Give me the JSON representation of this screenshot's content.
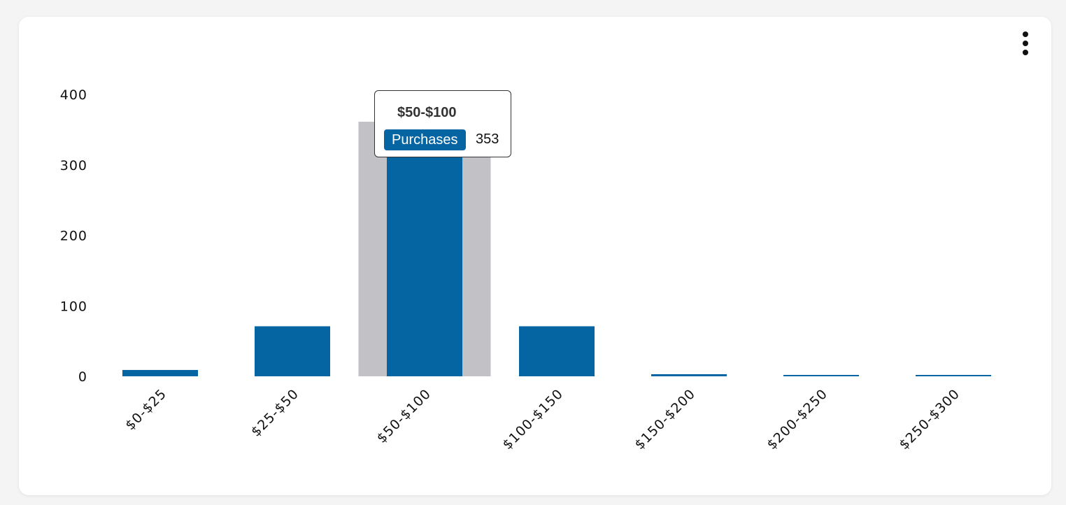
{
  "chart_data": {
    "type": "bar",
    "categories": [
      "$0-$25",
      "$25-$50",
      "$50-$100",
      "$100-$150",
      "$150-$200",
      "$200-$250",
      "$250-$300"
    ],
    "series": [
      {
        "name": "Purchases",
        "values": [
          9,
          71,
          353,
          71,
          3,
          1,
          1
        ]
      }
    ],
    "ylim": [
      0,
      400
    ],
    "yticks": [
      0,
      100,
      200,
      300,
      400
    ],
    "grid": false,
    "legend": "none"
  },
  "tooltip": {
    "title": "$50-$100",
    "series_label": "Purchases",
    "value": "353",
    "highlighted_index": 2
  },
  "colors": {
    "bar": "#0565a2",
    "hover_band": "#c1c1c6",
    "badge": "#0565a2"
  },
  "menu": {
    "icon": "more-vertical-icon"
  }
}
